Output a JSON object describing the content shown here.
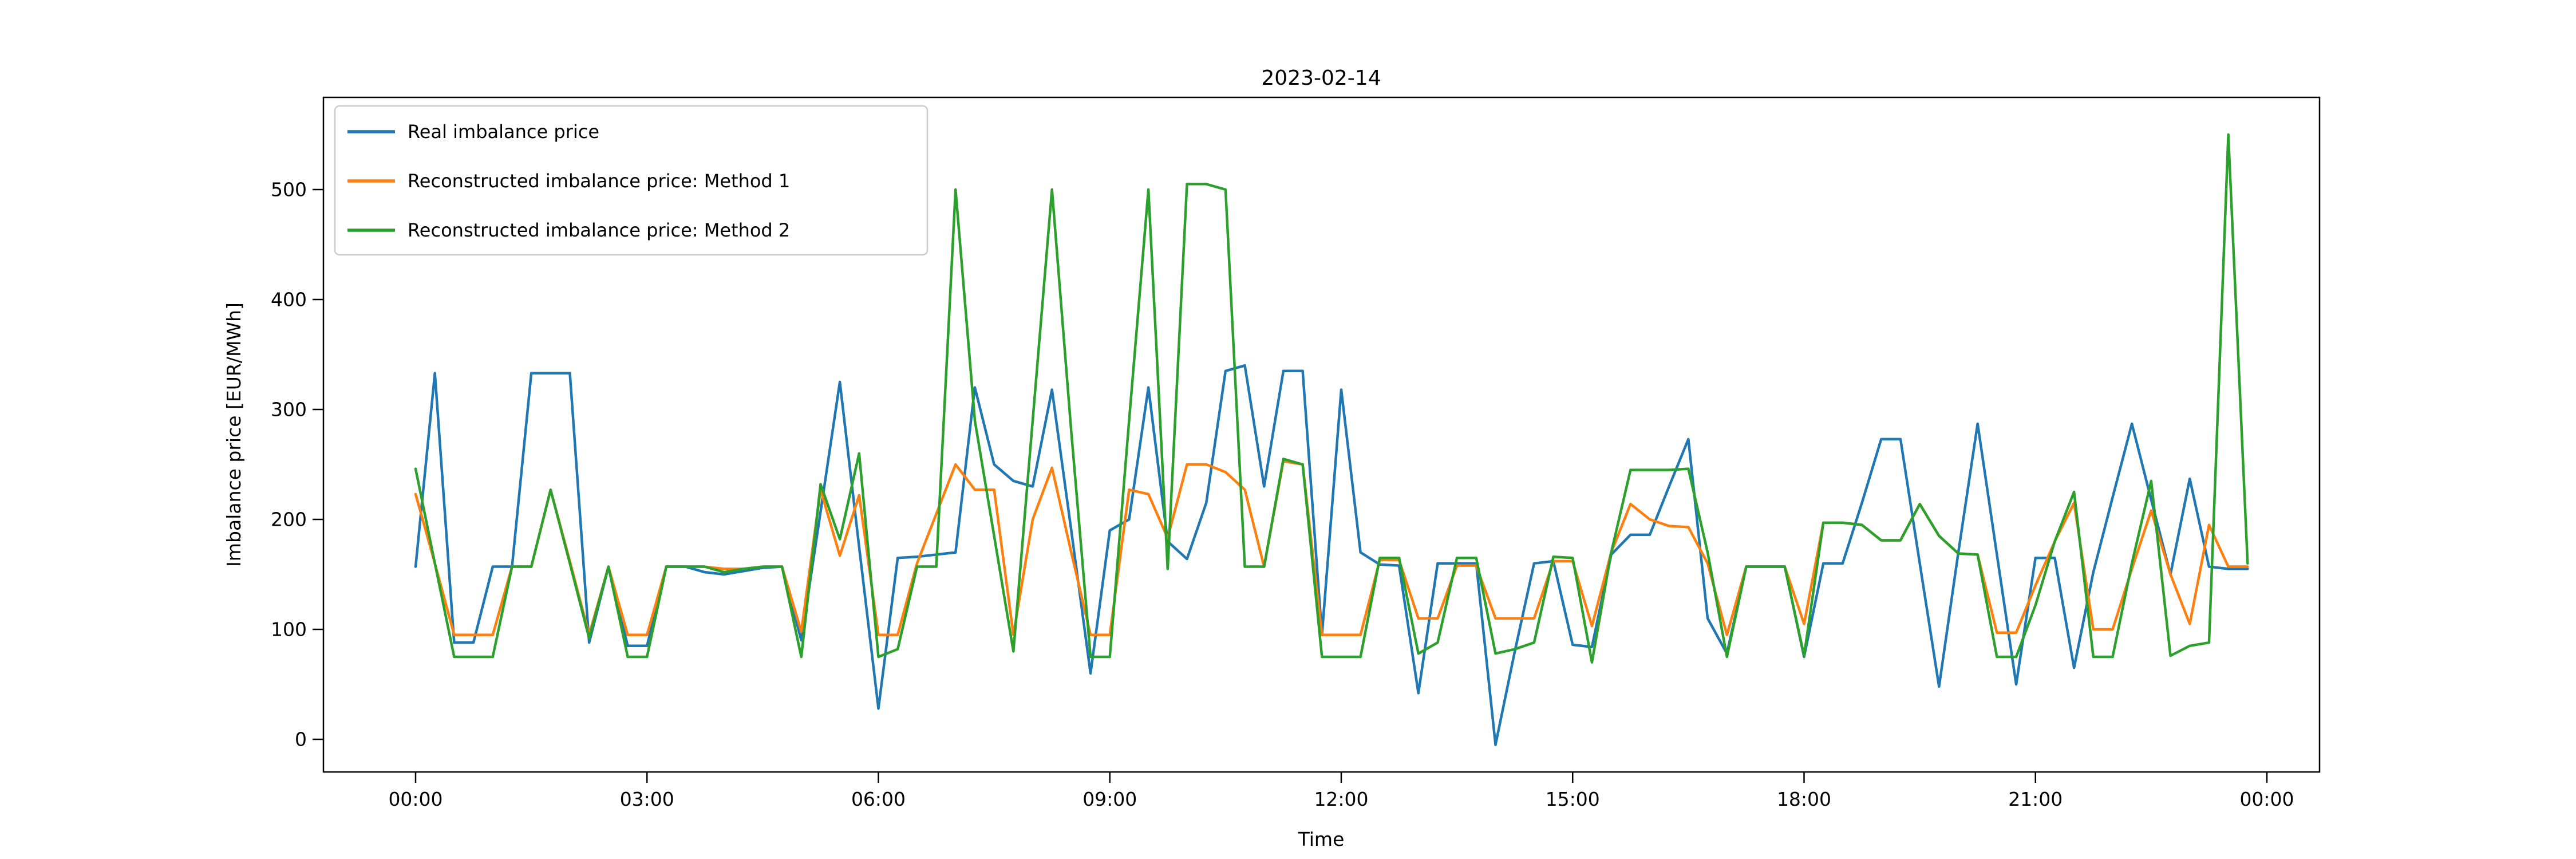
{
  "title": "2023-02-14",
  "chart_data": {
    "type": "line",
    "title": "2023-02-14",
    "xlabel": "Time",
    "ylabel": "Imbalance price [EUR/MWh]",
    "grid": false,
    "legend_position": "upper left",
    "x_interval": "15min",
    "x_tick_labels": [
      "00:00",
      "03:00",
      "06:00",
      "09:00",
      "12:00",
      "15:00",
      "18:00",
      "21:00",
      "00:00"
    ],
    "y_tick_labels": [
      "0",
      "100",
      "200",
      "300",
      "400",
      "500"
    ],
    "y_ticks": [
      0,
      100,
      200,
      300,
      400,
      500
    ],
    "ylim": [
      -35,
      580
    ],
    "x": [
      "00:00",
      "00:15",
      "00:30",
      "00:45",
      "01:00",
      "01:15",
      "01:30",
      "01:45",
      "02:00",
      "02:15",
      "02:30",
      "02:45",
      "03:00",
      "03:15",
      "03:30",
      "03:45",
      "04:00",
      "04:15",
      "04:30",
      "04:45",
      "05:00",
      "05:15",
      "05:30",
      "05:45",
      "06:00",
      "06:15",
      "06:30",
      "06:45",
      "07:00",
      "07:15",
      "07:30",
      "07:45",
      "08:00",
      "08:15",
      "08:30",
      "08:45",
      "09:00",
      "09:15",
      "09:30",
      "09:45",
      "10:00",
      "10:15",
      "10:30",
      "10:45",
      "11:00",
      "11:15",
      "11:30",
      "11:45",
      "12:00",
      "12:15",
      "12:30",
      "12:45",
      "13:00",
      "13:15",
      "13:30",
      "13:45",
      "14:00",
      "14:15",
      "14:30",
      "14:45",
      "15:00",
      "15:15",
      "15:30",
      "15:45",
      "16:00",
      "16:15",
      "16:30",
      "16:45",
      "17:00",
      "17:15",
      "17:30",
      "17:45",
      "18:00",
      "18:15",
      "18:30",
      "18:45",
      "19:00",
      "19:15",
      "19:30",
      "19:45",
      "20:00",
      "20:15",
      "20:30",
      "20:45",
      "21:00",
      "21:15",
      "21:30",
      "21:45",
      "22:00",
      "22:15",
      "22:30",
      "22:45",
      "23:00",
      "23:15",
      "23:30",
      "23:45"
    ],
    "series": [
      {
        "name": "Real imbalance price",
        "color": "#1f77b4",
        "values": [
          157,
          333,
          88,
          88,
          157,
          157,
          333,
          333,
          333,
          88,
          157,
          85,
          85,
          157,
          157,
          152,
          150,
          153,
          156,
          157,
          90,
          207,
          325,
          175,
          28,
          165,
          166,
          168,
          170,
          320,
          250,
          235,
          230,
          318,
          190,
          60,
          190,
          200,
          320,
          180,
          164,
          215,
          335,
          340,
          230,
          335,
          335,
          95,
          318,
          170,
          159,
          158,
          42,
          160,
          160,
          160,
          -5,
          80,
          160,
          162,
          86,
          84,
          168,
          186,
          186,
          230,
          273,
          110,
          78,
          157,
          157,
          157,
          75,
          160,
          160,
          215,
          273,
          273,
          160,
          48,
          170,
          287,
          168,
          50,
          165,
          165,
          65,
          152,
          220,
          287,
          218,
          150,
          237,
          157,
          155,
          155
        ]
      },
      {
        "name": "Reconstructed imbalance price: Method 1",
        "color": "#ff7f0e",
        "values": [
          223,
          160,
          95,
          95,
          95,
          157,
          157,
          227,
          162,
          95,
          157,
          95,
          95,
          157,
          157,
          157,
          155,
          155,
          157,
          157,
          98,
          227,
          167,
          222,
          95,
          95,
          160,
          205,
          250,
          227,
          227,
          95,
          200,
          247,
          170,
          95,
          95,
          227,
          223,
          183,
          250,
          250,
          243,
          227,
          157,
          253,
          250,
          95,
          95,
          95,
          163,
          163,
          110,
          110,
          158,
          158,
          110,
          110,
          110,
          162,
          162,
          103,
          170,
          214,
          200,
          194,
          193,
          160,
          95,
          157,
          157,
          157,
          105,
          197,
          197,
          195,
          181,
          181,
          214,
          185,
          169,
          168,
          97,
          97,
          140,
          180,
          215,
          100,
          100,
          155,
          208,
          150,
          105,
          195,
          157,
          157
        ]
      },
      {
        "name": "Reconstructed imbalance price: Method 2",
        "color": "#2ca02c",
        "values": [
          246,
          160,
          75,
          75,
          75,
          157,
          157,
          227,
          160,
          92,
          157,
          75,
          75,
          157,
          157,
          157,
          152,
          155,
          157,
          157,
          75,
          232,
          182,
          260,
          75,
          82,
          157,
          157,
          500,
          290,
          185,
          80,
          290,
          500,
          280,
          75,
          75,
          290,
          500,
          155,
          505,
          505,
          500,
          157,
          157,
          255,
          250,
          75,
          75,
          75,
          165,
          165,
          78,
          88,
          165,
          165,
          78,
          82,
          88,
          166,
          165,
          70,
          170,
          245,
          245,
          245,
          246,
          170,
          75,
          157,
          157,
          157,
          76,
          197,
          197,
          195,
          181,
          181,
          214,
          185,
          169,
          168,
          75,
          75,
          122,
          180,
          225,
          75,
          75,
          160,
          235,
          76,
          85,
          88,
          550,
          160
        ]
      }
    ]
  }
}
